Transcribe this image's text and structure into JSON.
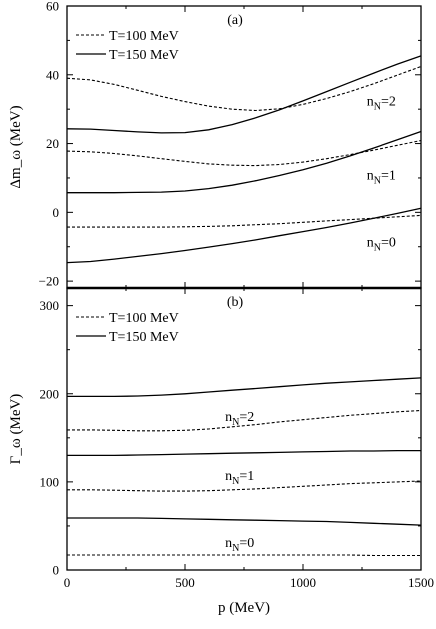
{
  "chart_data": [
    {
      "panel": "(a)",
      "type": "line",
      "xlabel": "",
      "ylabel": "Δm_ω (MeV)",
      "xlim": [
        0,
        1500
      ],
      "ylim": [
        -22,
        60
      ],
      "xticks": [
        0,
        500,
        1000,
        1500
      ],
      "yticks": [
        -20,
        0,
        20,
        40,
        60
      ],
      "legend": {
        "position": "top-left",
        "entries": [
          {
            "label": "T=100 MeV",
            "style": "dashed"
          },
          {
            "label": "T=150 MeV",
            "style": "solid"
          }
        ]
      },
      "annotations": [
        {
          "label": "n",
          "sub": "N",
          "suffix": "=2",
          "x": 1270,
          "y": 31
        },
        {
          "label": "n",
          "sub": "N",
          "suffix": "=1",
          "x": 1270,
          "y": 9.5
        },
        {
          "label": "n",
          "sub": "N",
          "suffix": "=0",
          "x": 1270,
          "y": -10
        }
      ],
      "series": [
        {
          "nN": 2,
          "style": "dashed",
          "x": [
            0,
            100,
            200,
            300,
            400,
            500,
            600,
            700,
            800,
            900,
            1000,
            1100,
            1200,
            1300,
            1400,
            1500
          ],
          "y": [
            39,
            38.5,
            37.2,
            35.5,
            33.7,
            32.2,
            30.9,
            30,
            29.6,
            30.1,
            31.4,
            33.1,
            35.1,
            37.4,
            39.9,
            42.4
          ]
        },
        {
          "nN": 2,
          "style": "solid",
          "x": [
            0,
            100,
            200,
            300,
            400,
            500,
            600,
            700,
            800,
            900,
            1000,
            1100,
            1200,
            1300,
            1400,
            1500
          ],
          "y": [
            24.3,
            24.2,
            23.8,
            23.4,
            23.1,
            23.2,
            24,
            25.5,
            27.5,
            29.8,
            32.4,
            35.1,
            37.8,
            40.5,
            43.1,
            45.5
          ]
        },
        {
          "nN": 1,
          "style": "dashed",
          "x": [
            0,
            100,
            200,
            300,
            400,
            500,
            600,
            700,
            800,
            900,
            1000,
            1100,
            1200,
            1300,
            1400,
            1500
          ],
          "y": [
            17.8,
            17.6,
            17.1,
            16.4,
            15.6,
            14.8,
            14.1,
            13.7,
            13.6,
            13.9,
            14.6,
            15.6,
            16.8,
            18.1,
            19.5,
            20.9
          ]
        },
        {
          "nN": 1,
          "style": "solid",
          "x": [
            0,
            100,
            200,
            300,
            400,
            500,
            600,
            700,
            800,
            900,
            1000,
            1100,
            1200,
            1300,
            1400,
            1500
          ],
          "y": [
            5.7,
            5.7,
            5.7,
            5.8,
            5.9,
            6.2,
            6.9,
            7.9,
            9.2,
            10.7,
            12.4,
            14.3,
            16.4,
            18.7,
            21.1,
            23.5
          ]
        },
        {
          "nN": 0,
          "style": "dashed",
          "x": [
            0,
            100,
            200,
            300,
            400,
            500,
            600,
            700,
            800,
            900,
            1000,
            1100,
            1200,
            1300,
            1400,
            1500
          ],
          "y": [
            -4.3,
            -4.3,
            -4.3,
            -4.3,
            -4.3,
            -4.2,
            -4.1,
            -3.9,
            -3.6,
            -3.3,
            -2.9,
            -2.5,
            -2.1,
            -1.7,
            -1.3,
            -0.9
          ]
        },
        {
          "nN": 0,
          "style": "solid",
          "x": [
            0,
            100,
            200,
            300,
            400,
            500,
            600,
            700,
            800,
            900,
            1000,
            1100,
            1200,
            1300,
            1400,
            1500
          ],
          "y": [
            -14.6,
            -14.3,
            -13.6,
            -12.8,
            -12,
            -11.1,
            -10.1,
            -9.1,
            -8,
            -6.8,
            -5.6,
            -4.4,
            -3.1,
            -1.7,
            -0.3,
            1.2
          ]
        }
      ]
    },
    {
      "panel": "(b)",
      "type": "line",
      "xlabel": "p (MeV)",
      "ylabel": "Γ_ω (MeV)",
      "xlim": [
        0,
        1500
      ],
      "ylim": [
        0,
        320
      ],
      "xticks": [
        0,
        500,
        1000,
        1500
      ],
      "yticks": [
        0,
        100,
        200,
        300
      ],
      "legend": {
        "position": "top-left",
        "entries": [
          {
            "label": "T=100 MeV",
            "style": "dashed"
          },
          {
            "label": "T=150 MeV",
            "style": "solid"
          }
        ]
      },
      "annotations": [
        {
          "label": "n",
          "sub": "N",
          "suffix": "=2",
          "x": 670,
          "y": 169
        },
        {
          "label": "n",
          "sub": "N",
          "suffix": "=1",
          "x": 670,
          "y": 102
        },
        {
          "label": "n",
          "sub": "N",
          "suffix": "=0",
          "x": 670,
          "y": 26
        }
      ],
      "series": [
        {
          "nN": 2,
          "style": "solid",
          "x": [
            0,
            100,
            200,
            300,
            400,
            500,
            600,
            700,
            800,
            900,
            1000,
            1100,
            1200,
            1300,
            1400,
            1500
          ],
          "y": [
            197,
            197,
            197,
            197.5,
            198.5,
            200,
            202,
            204,
            206,
            208,
            210,
            212,
            213.5,
            215,
            216.5,
            218
          ]
        },
        {
          "nN": 2,
          "style": "dashed",
          "x": [
            0,
            100,
            200,
            300,
            400,
            500,
            600,
            700,
            800,
            900,
            1000,
            1100,
            1200,
            1300,
            1400,
            1500
          ],
          "y": [
            159,
            159,
            158.5,
            158,
            158,
            158.5,
            160,
            162.5,
            165,
            168,
            170.5,
            173,
            175.5,
            177.5,
            179.5,
            181
          ]
        },
        {
          "nN": 1,
          "style": "solid",
          "x": [
            0,
            100,
            200,
            300,
            400,
            500,
            600,
            700,
            800,
            900,
            1000,
            1100,
            1200,
            1300,
            1400,
            1500
          ],
          "y": [
            130,
            130,
            130,
            130.5,
            131,
            131.5,
            132,
            132.5,
            133,
            133.5,
            134,
            134.5,
            135,
            135,
            135.5,
            135.5
          ]
        },
        {
          "nN": 1,
          "style": "dashed",
          "x": [
            0,
            100,
            200,
            300,
            400,
            500,
            600,
            700,
            800,
            900,
            1000,
            1100,
            1200,
            1300,
            1400,
            1500
          ],
          "y": [
            91,
            91,
            90.5,
            90,
            89.5,
            89.5,
            90,
            91,
            92,
            93.5,
            95,
            96.5,
            98,
            99,
            100,
            101
          ]
        },
        {
          "nN": 0,
          "style": "solid",
          "x": [
            0,
            100,
            200,
            300,
            400,
            500,
            600,
            700,
            800,
            900,
            1000,
            1100,
            1200,
            1300,
            1400,
            1500
          ],
          "y": [
            59,
            59,
            59,
            59,
            58.5,
            58,
            57.5,
            57,
            56.5,
            56,
            55.5,
            55,
            54,
            53,
            52,
            51
          ]
        },
        {
          "nN": 0,
          "style": "dashed",
          "x": [
            0,
            100,
            200,
            300,
            400,
            500,
            600,
            700,
            800,
            900,
            1000,
            1100,
            1200,
            1300,
            1400,
            1500
          ],
          "y": [
            17,
            17,
            17,
            17,
            17,
            17,
            17,
            17,
            17,
            17,
            17,
            17,
            17,
            16.5,
            16.5,
            16.5
          ]
        }
      ]
    }
  ]
}
